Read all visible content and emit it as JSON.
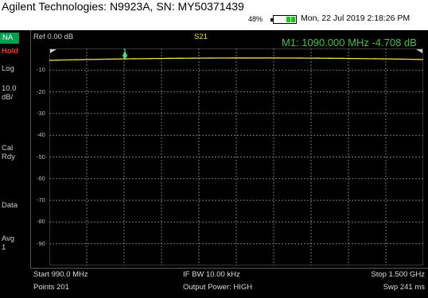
{
  "header": {
    "title": "Agilent Technologies: N9923A, SN: MY50371439",
    "battery_percent": "48%",
    "battery_level": 0.48,
    "datetime": "Mon, 22 Jul 2019 2:18:26 PM"
  },
  "sidebar": {
    "mode": "NA",
    "hold": "Hold",
    "format": "Log",
    "scale": "10.0\ndB/",
    "cal": "Cal\nRdy",
    "data": "Data",
    "avg": "Avg\n1"
  },
  "plot": {
    "reference": "Ref 0.00 dB",
    "trace": "S21",
    "marker_label": "1",
    "marker_readout": "M1:  1090.000 MHz  -4.708 dB",
    "y_ticks": [
      "-10",
      "-20",
      "-30",
      "-40",
      "-50",
      "-60",
      "-70",
      "-80",
      "-90"
    ],
    "trace_color": "#f0e040",
    "marker_color": "#40e080"
  },
  "footer": {
    "start": "Start 990.0 MHz",
    "points": "Points 201",
    "if_bw": "IF BW 10.00 kHz",
    "output_power": "Output Power: HIGH",
    "stop": "Stop 1.500 GHz",
    "sweep": "Swp 241 ms"
  }
}
